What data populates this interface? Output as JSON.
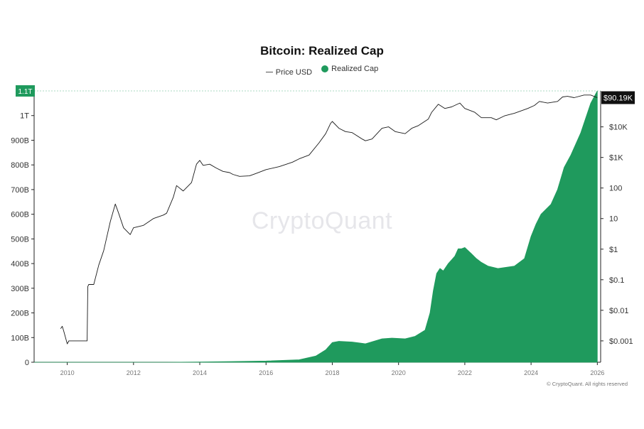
{
  "chart_data": {
    "type": "area",
    "title": "Bitcoin: Realized Cap",
    "legend": {
      "placement": "top-center",
      "items": [
        {
          "label": "Price USD",
          "marker": "line"
        },
        {
          "label": "Realized Cap",
          "marker": "dot"
        }
      ]
    },
    "x_axis": {
      "ticks": [
        "2010",
        "2012",
        "2014",
        "2016",
        "2018",
        "2020",
        "2022",
        "2024",
        "2026"
      ],
      "range": [
        2009.0,
        2026.1
      ]
    },
    "y_left": {
      "ticks": [
        "0",
        "100B",
        "200B",
        "300B",
        "400B",
        "500B",
        "600B",
        "700B",
        "800B",
        "900B",
        "1T"
      ],
      "tick_values": [
        0,
        100,
        200,
        300,
        400,
        500,
        600,
        700,
        800,
        900,
        1000
      ],
      "unit": "billion USD",
      "range": [
        0,
        1100
      ],
      "last_value_label": "1.1T"
    },
    "y_right": {
      "scale": "log",
      "ticks": [
        "$0.001",
        "$0.01",
        "$0.1",
        "$1",
        "10",
        "100",
        "$1K",
        "$10K"
      ],
      "tick_values": [
        0.001,
        0.01,
        0.1,
        1,
        10,
        100,
        1000,
        10000
      ],
      "range": [
        0.0002,
        150000
      ],
      "last_value_label": "$90.19K"
    },
    "grid": false,
    "series": [
      {
        "name": "Realized Cap",
        "axis": "left",
        "style": "area",
        "color": "#1f9a5d",
        "x": [
          2009.0,
          2013.0,
          2014.0,
          2015.0,
          2016.0,
          2017.0,
          2017.5,
          2017.8,
          2018.0,
          2018.2,
          2018.6,
          2019.0,
          2019.5,
          2019.8,
          2020.2,
          2020.5,
          2020.8,
          2020.95,
          2021.05,
          2021.15,
          2021.25,
          2021.35,
          2021.5,
          2021.7,
          2021.8,
          2021.9,
          2022.0,
          2022.2,
          2022.35,
          2022.5,
          2022.7,
          2023.0,
          2023.5,
          2023.8,
          2024.0,
          2024.15,
          2024.3,
          2024.6,
          2024.8,
          2025.0,
          2025.2,
          2025.5,
          2025.8,
          2026.0
        ],
        "values": [
          0,
          0,
          1,
          3,
          5,
          10,
          25,
          50,
          80,
          85,
          82,
          75,
          95,
          98,
          95,
          105,
          130,
          200,
          290,
          360,
          380,
          370,
          400,
          430,
          460,
          460,
          465,
          440,
          420,
          405,
          390,
          380,
          390,
          420,
          510,
          560,
          600,
          640,
          700,
          790,
          840,
          930,
          1050,
          1100
        ]
      },
      {
        "name": "Price USD",
        "axis": "right",
        "style": "line",
        "color": "#1a1a1a",
        "x": [
          2009.8,
          2009.85,
          2009.9,
          2010.0,
          2010.05,
          2010.1,
          2010.6,
          2010.62,
          2010.65,
          2010.8,
          2010.95,
          2011.1,
          2011.3,
          2011.45,
          2011.55,
          2011.7,
          2011.9,
          2012.0,
          2012.3,
          2012.6,
          2012.9,
          2013.0,
          2013.2,
          2013.3,
          2013.5,
          2013.75,
          2013.9,
          2014.0,
          2014.1,
          2014.3,
          2014.5,
          2014.7,
          2014.9,
          2015.0,
          2015.2,
          2015.5,
          2015.7,
          2016.0,
          2016.4,
          2016.8,
          2017.0,
          2017.3,
          2017.6,
          2017.8,
          2017.95,
          2018.0,
          2018.2,
          2018.4,
          2018.6,
          2018.9,
          2019.0,
          2019.2,
          2019.5,
          2019.7,
          2019.9,
          2020.2,
          2020.4,
          2020.6,
          2020.9,
          2021.0,
          2021.2,
          2021.4,
          2021.6,
          2021.85,
          2022.0,
          2022.3,
          2022.5,
          2022.8,
          2022.95,
          2023.2,
          2023.5,
          2023.9,
          2024.1,
          2024.25,
          2024.5,
          2024.8,
          2024.95,
          2025.1,
          2025.3,
          2025.6,
          2025.8,
          2026.0
        ],
        "values": [
          0.0025,
          0.003,
          0.002,
          0.0008,
          0.001,
          0.001,
          0.001,
          0.06,
          0.07,
          0.07,
          0.3,
          0.9,
          8,
          30,
          15,
          5,
          3,
          5,
          6,
          10,
          13,
          15,
          50,
          120,
          80,
          150,
          600,
          800,
          550,
          600,
          450,
          350,
          320,
          280,
          240,
          250,
          300,
          400,
          500,
          700,
          900,
          1200,
          3000,
          6000,
          13000,
          15000,
          9000,
          7000,
          6500,
          4000,
          3500,
          4000,
          9000,
          10000,
          7000,
          6000,
          9000,
          11000,
          18000,
          30000,
          55000,
          40000,
          45000,
          60000,
          40000,
          30000,
          20000,
          20000,
          17000,
          23000,
          28000,
          40000,
          50000,
          68000,
          60000,
          68000,
          95000,
          100000,
          90000,
          110000,
          110000,
          90190
        ]
      }
    ],
    "annotations": {
      "watermark": "CryptoQuant",
      "copyright": "© CryptoQuant. All rights reserved"
    }
  }
}
